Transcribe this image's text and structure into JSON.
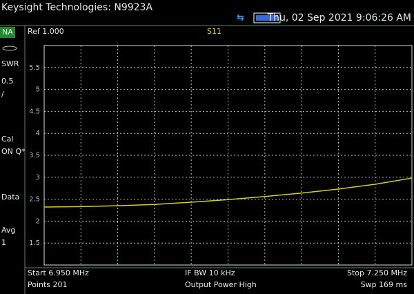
{
  "header": {
    "title": "Keysight Technologies: N9923A",
    "datetime": "Thu, 02 Sep 2021 9:06:26 AM"
  },
  "sidebar": {
    "mode": "NA",
    "items": [
      "SWR",
      "0.5",
      "/",
      "Cal",
      "ON Q*",
      "Data",
      "Avg",
      "1"
    ]
  },
  "chart_data": {
    "type": "line",
    "title": "S11",
    "reference": "Ref 1.000",
    "x": [
      6.95,
      6.98,
      7.01,
      7.04,
      7.07,
      7.1,
      7.13,
      7.16,
      7.19,
      7.22,
      7.25
    ],
    "series": [
      {
        "color": "#d6cf1e",
        "values": [
          2.32,
          2.33,
          2.35,
          2.38,
          2.43,
          2.49,
          2.56,
          2.64,
          2.73,
          2.84,
          2.98
        ]
      }
    ],
    "xlim": [
      6.95,
      7.25
    ],
    "ylim": [
      1,
      6
    ],
    "yticks": [
      1.5,
      2,
      2.5,
      3,
      3.5,
      4,
      4.5,
      5,
      5.5
    ],
    "grid": true
  },
  "footer": {
    "start": "Start 6.950 MHz",
    "ifbw": "IF BW 10 kHz",
    "stop": "Stop 7.250 MHz",
    "points": "Points 201",
    "power": "Output Power High",
    "sweep": "Swp 169 ms"
  }
}
